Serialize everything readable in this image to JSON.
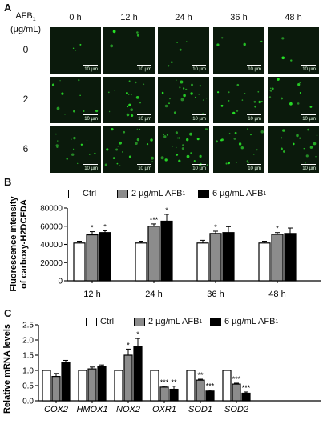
{
  "panel_a": {
    "letter": "A",
    "row_header_line1": "AFB",
    "row_header_sub": "1",
    "row_header_line2": "(µg/mL)",
    "columns": [
      "0 h",
      "12 h",
      "24 h",
      "36 h",
      "48 h"
    ],
    "rows": [
      "0",
      "2",
      "6"
    ],
    "scale_bar_label": "10 µm"
  },
  "panel_b": {
    "letter": "B",
    "legend": [
      {
        "label": "Ctrl",
        "sub": "",
        "fill": "#ffffff"
      },
      {
        "label": "2 µg/mL AFB",
        "sub": "1",
        "fill": "#8c8c8c"
      },
      {
        "label": "6 µg/mL AFB",
        "sub": "1",
        "fill": "#000000"
      }
    ]
  },
  "panel_c": {
    "letter": "C",
    "legend": [
      {
        "label": "Ctrl",
        "sub": "",
        "fill": "#ffffff"
      },
      {
        "label": "2 µg/mL AFB",
        "sub": "1",
        "fill": "#8c8c8c"
      },
      {
        "label": "6 µg/mL AFB",
        "sub": "1",
        "fill": "#000000"
      }
    ]
  },
  "chart_data": [
    {
      "type": "bar",
      "ylabel_line1": "Fluorescence intensity",
      "ylabel_line2": "of carboxy-H2DCFDA",
      "categories": [
        "12 h",
        "24 h",
        "36 h",
        "48 h"
      ],
      "ylim": [
        0,
        80000
      ],
      "yticks": [
        0,
        20000,
        40000,
        60000,
        80000
      ],
      "colors": [
        "#ffffff",
        "#8c8c8c",
        "#000000"
      ],
      "series": [
        {
          "values": [
            41500,
            41500,
            41500,
            41500
          ],
          "errors": [
            2000,
            2000,
            3000,
            2000
          ],
          "sig": [
            "",
            "",
            "",
            ""
          ]
        },
        {
          "values": [
            50500,
            60000,
            52000,
            51000
          ],
          "errors": [
            3500,
            2500,
            2500,
            2000
          ],
          "sig": [
            "*",
            "***",
            "*",
            "*"
          ]
        },
        {
          "values": [
            53000,
            65500,
            53000,
            52000
          ],
          "errors": [
            2000,
            7500,
            6500,
            6000
          ],
          "sig": [
            "*",
            "*",
            "",
            ""
          ]
        }
      ]
    },
    {
      "type": "bar",
      "ylabel": "Relative mRNA levels",
      "categories": [
        "COX2",
        "HMOX1",
        "NOX2",
        "OXR1",
        "SOD1",
        "SOD2"
      ],
      "ylim": [
        0,
        2.5
      ],
      "yticks": [
        0.0,
        0.5,
        1.0,
        1.5,
        2.0,
        2.5
      ],
      "colors": [
        "#ffffff",
        "#8c8c8c",
        "#000000"
      ],
      "series": [
        {
          "values": [
            1.0,
            1.0,
            1.0,
            1.0,
            1.0,
            1.0
          ],
          "errors": [
            0,
            0,
            0,
            0,
            0,
            0
          ],
          "sig": [
            "",
            "",
            "",
            "",
            "",
            ""
          ]
        },
        {
          "values": [
            0.8,
            1.05,
            1.5,
            0.45,
            0.68,
            0.55
          ],
          "errors": [
            0.1,
            0.06,
            0.2,
            0.03,
            0.03,
            0.03
          ],
          "sig": [
            "",
            "",
            "*",
            "***",
            "**",
            "***"
          ]
        },
        {
          "values": [
            1.25,
            1.12,
            1.8,
            0.38,
            0.32,
            0.25
          ],
          "errors": [
            0.08,
            0.06,
            0.25,
            0.1,
            0.03,
            0.04
          ],
          "sig": [
            "",
            "",
            "*",
            "**",
            "***",
            "***"
          ]
        }
      ]
    }
  ]
}
